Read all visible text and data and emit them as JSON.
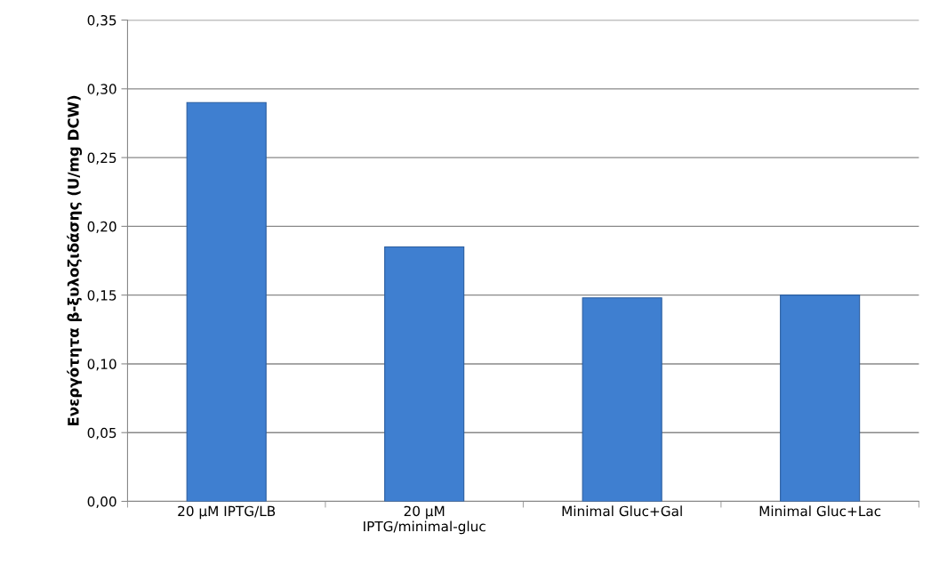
{
  "chart_data": {
    "type": "bar",
    "ylabel": "Ενεργότητα β-ξυλοζιδάσης (U/mg DCW)",
    "categories": [
      "20 μM IPTG/LB",
      "20 μM\nIPTG/minimal-gluc",
      "Minimal Gluc+Gal",
      "Minimal Gluc+Lac"
    ],
    "values": [
      0.29,
      0.185,
      0.148,
      0.15
    ],
    "color": "#3f7fd0",
    "ylim": [
      0,
      0.35
    ],
    "yticks": [
      {
        "value": 0,
        "label": "0,00"
      },
      {
        "value": 0.05,
        "label": "0,05"
      },
      {
        "value": 0.1,
        "label": "0,10"
      },
      {
        "value": 0.15,
        "label": "0,15"
      },
      {
        "value": 0.2,
        "label": "0,20"
      },
      {
        "value": 0.25,
        "label": "0,25"
      },
      {
        "value": 0.3,
        "label": "0,30"
      },
      {
        "value": 0.35,
        "label": "0,35"
      }
    ],
    "grid": "y"
  }
}
